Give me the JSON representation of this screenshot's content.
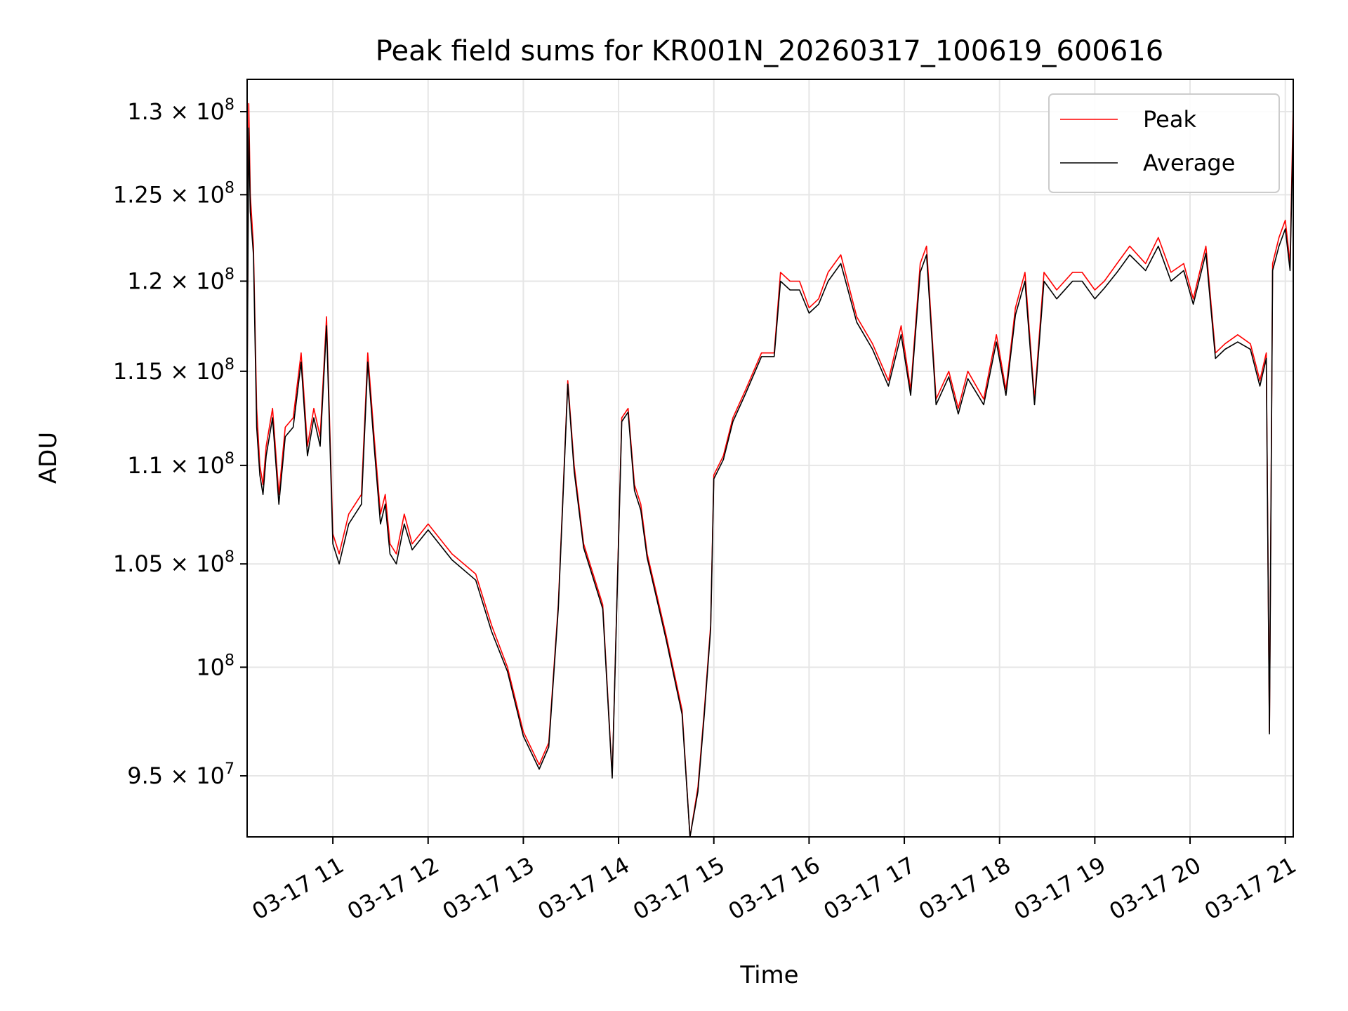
{
  "chart_data": {
    "type": "line",
    "title": "Peak field sums for KR001N_20260317_100619_600616",
    "xlabel": "Time",
    "ylabel": "ADU",
    "y_scale": "log",
    "grid": true,
    "legend_position": "top-right",
    "xlim": [
      "03-17 10:06",
      "03-17 21:05"
    ],
    "ylim": [
      92300000,
      132000000
    ],
    "x_ticks": [
      {
        "value": "03-17 11:00",
        "label": "03-17 11"
      },
      {
        "value": "03-17 12:00",
        "label": "03-17 12"
      },
      {
        "value": "03-17 13:00",
        "label": "03-17 13"
      },
      {
        "value": "03-17 14:00",
        "label": "03-17 14"
      },
      {
        "value": "03-17 15:00",
        "label": "03-17 15"
      },
      {
        "value": "03-17 16:00",
        "label": "03-17 16"
      },
      {
        "value": "03-17 17:00",
        "label": "03-17 17"
      },
      {
        "value": "03-17 18:00",
        "label": "03-17 18"
      },
      {
        "value": "03-17 19:00",
        "label": "03-17 19"
      },
      {
        "value": "03-17 20:00",
        "label": "03-17 20"
      },
      {
        "value": "03-17 21:00",
        "label": "03-17 21"
      }
    ],
    "y_ticks": [
      {
        "value": 95000000,
        "mant": "9.5",
        "exp": "7"
      },
      {
        "value": 100000000,
        "mant": "",
        "exp": "8"
      },
      {
        "value": 105000000,
        "mant": "1.05",
        "exp": "8"
      },
      {
        "value": 110000000,
        "mant": "1.1",
        "exp": "8"
      },
      {
        "value": 115000000,
        "mant": "1.15",
        "exp": "8"
      },
      {
        "value": 120000000,
        "mant": "1.2",
        "exp": "8"
      },
      {
        "value": 125000000,
        "mant": "1.25",
        "exp": "8"
      },
      {
        "value": 130000000,
        "mant": "1.3",
        "exp": "8"
      }
    ],
    "x": [
      "03-17 10:06",
      "03-17 10:07",
      "03-17 10:08",
      "03-17 10:10",
      "03-17 10:12",
      "03-17 10:14",
      "03-17 10:16",
      "03-17 10:18",
      "03-17 10:22",
      "03-17 10:26",
      "03-17 10:30",
      "03-17 10:35",
      "03-17 10:40",
      "03-17 10:44",
      "03-17 10:48",
      "03-17 10:52",
      "03-17 10:56",
      "03-17 11:00",
      "03-17 11:04",
      "03-17 11:10",
      "03-17 11:18",
      "03-17 11:22",
      "03-17 11:26",
      "03-17 11:30",
      "03-17 11:33",
      "03-17 11:36",
      "03-17 11:40",
      "03-17 11:45",
      "03-17 11:50",
      "03-17 12:00",
      "03-17 12:15",
      "03-17 12:30",
      "03-17 12:40",
      "03-17 12:50",
      "03-17 13:00",
      "03-17 13:10",
      "03-17 13:16",
      "03-17 13:22",
      "03-17 13:28",
      "03-17 13:32",
      "03-17 13:38",
      "03-17 13:50",
      "03-17 13:56",
      "03-17 14:02",
      "03-17 14:06",
      "03-17 14:10",
      "03-17 14:14",
      "03-17 14:18",
      "03-17 14:24",
      "03-17 14:30",
      "03-17 14:40",
      "03-17 14:45",
      "03-17 14:50",
      "03-17 14:54",
      "03-17 14:58",
      "03-17 15:00",
      "03-17 15:06",
      "03-17 15:12",
      "03-17 15:20",
      "03-17 15:30",
      "03-17 15:38",
      "03-17 15:42",
      "03-17 15:48",
      "03-17 15:54",
      "03-17 16:00",
      "03-17 16:06",
      "03-17 16:12",
      "03-17 16:20",
      "03-17 16:30",
      "03-17 16:40",
      "03-17 16:50",
      "03-17 16:58",
      "03-17 17:04",
      "03-17 17:10",
      "03-17 17:14",
      "03-17 17:20",
      "03-17 17:28",
      "03-17 17:34",
      "03-17 17:40",
      "03-17 17:50",
      "03-17 17:58",
      "03-17 18:04",
      "03-17 18:10",
      "03-17 18:16",
      "03-17 18:22",
      "03-17 18:28",
      "03-17 18:36",
      "03-17 18:46",
      "03-17 18:52",
      "03-17 19:00",
      "03-17 19:06",
      "03-17 19:14",
      "03-17 19:22",
      "03-17 19:32",
      "03-17 19:40",
      "03-17 19:48",
      "03-17 19:56",
      "03-17 20:02",
      "03-17 20:10",
      "03-17 20:16",
      "03-17 20:22",
      "03-17 20:30",
      "03-17 20:38",
      "03-17 20:44",
      "03-17 20:48",
      "03-17 20:50",
      "03-17 20:52",
      "03-17 20:56",
      "03-17 21:00",
      "03-17 21:03",
      "03-17 21:05"
    ],
    "series": [
      {
        "name": "Peak",
        "color": "#ff0000",
        "values": [
          114000000,
          130500000,
          125000000,
          122000000,
          113000000,
          110000000,
          109000000,
          111000000,
          113000000,
          108500000,
          112000000,
          112500000,
          116000000,
          111000000,
          113000000,
          111500000,
          118000000,
          106500000,
          105500000,
          107500000,
          108500000,
          116000000,
          111500000,
          107500000,
          108500000,
          106000000,
          105500000,
          107500000,
          106000000,
          107000000,
          105500000,
          104500000,
          102000000,
          100000000,
          97000000,
          95500000,
          96500000,
          103000000,
          114500000,
          110000000,
          106000000,
          103000000,
          95000000,
          112500000,
          113000000,
          109000000,
          108000000,
          105500000,
          103500000,
          101500000,
          98000000,
          92300000,
          94500000,
          98000000,
          102000000,
          109500000,
          110500000,
          112500000,
          114000000,
          116000000,
          116000000,
          120500000,
          120000000,
          120000000,
          118500000,
          119000000,
          120500000,
          121500000,
          118000000,
          116500000,
          114500000,
          117500000,
          114000000,
          121000000,
          122000000,
          113500000,
          115000000,
          113000000,
          115000000,
          113500000,
          117000000,
          114000000,
          118500000,
          120500000,
          113500000,
          120500000,
          119500000,
          120500000,
          120500000,
          119500000,
          120000000,
          121000000,
          122000000,
          121000000,
          122500000,
          120500000,
          121000000,
          119000000,
          122000000,
          116000000,
          116500000,
          117000000,
          116500000,
          114500000,
          116000000,
          97000000,
          121000000,
          122500000,
          123500000,
          121000000,
          130500000
        ]
      },
      {
        "name": "Average",
        "color": "#000000",
        "values": [
          113500000,
          129000000,
          124000000,
          121500000,
          112000000,
          109500000,
          108500000,
          110500000,
          112500000,
          108000000,
          111500000,
          112000000,
          115500000,
          110500000,
          112500000,
          111000000,
          117500000,
          106000000,
          105000000,
          107000000,
          108000000,
          115500000,
          111000000,
          107000000,
          108000000,
          105500000,
          105000000,
          107000000,
          105700000,
          106700000,
          105200000,
          104200000,
          101700000,
          99800000,
          96800000,
          95300000,
          96300000,
          102800000,
          114300000,
          109700000,
          105800000,
          102800000,
          94900000,
          112300000,
          112800000,
          108700000,
          107700000,
          105300000,
          103300000,
          101300000,
          97800000,
          92300000,
          94300000,
          97800000,
          101800000,
          109300000,
          110300000,
          112300000,
          113800000,
          115800000,
          115800000,
          120000000,
          119500000,
          119500000,
          118200000,
          118700000,
          120000000,
          121000000,
          117700000,
          116200000,
          114200000,
          117000000,
          113700000,
          120500000,
          121500000,
          113200000,
          114700000,
          112700000,
          114600000,
          113200000,
          116600000,
          113700000,
          118100000,
          120000000,
          113200000,
          120000000,
          119000000,
          120000000,
          120000000,
          119000000,
          119600000,
          120500000,
          121500000,
          120600000,
          122000000,
          120000000,
          120600000,
          118700000,
          121600000,
          115700000,
          116200000,
          116600000,
          116200000,
          114200000,
          115700000,
          96900000,
          120600000,
          122000000,
          123000000,
          120600000,
          129500000
        ]
      }
    ]
  }
}
